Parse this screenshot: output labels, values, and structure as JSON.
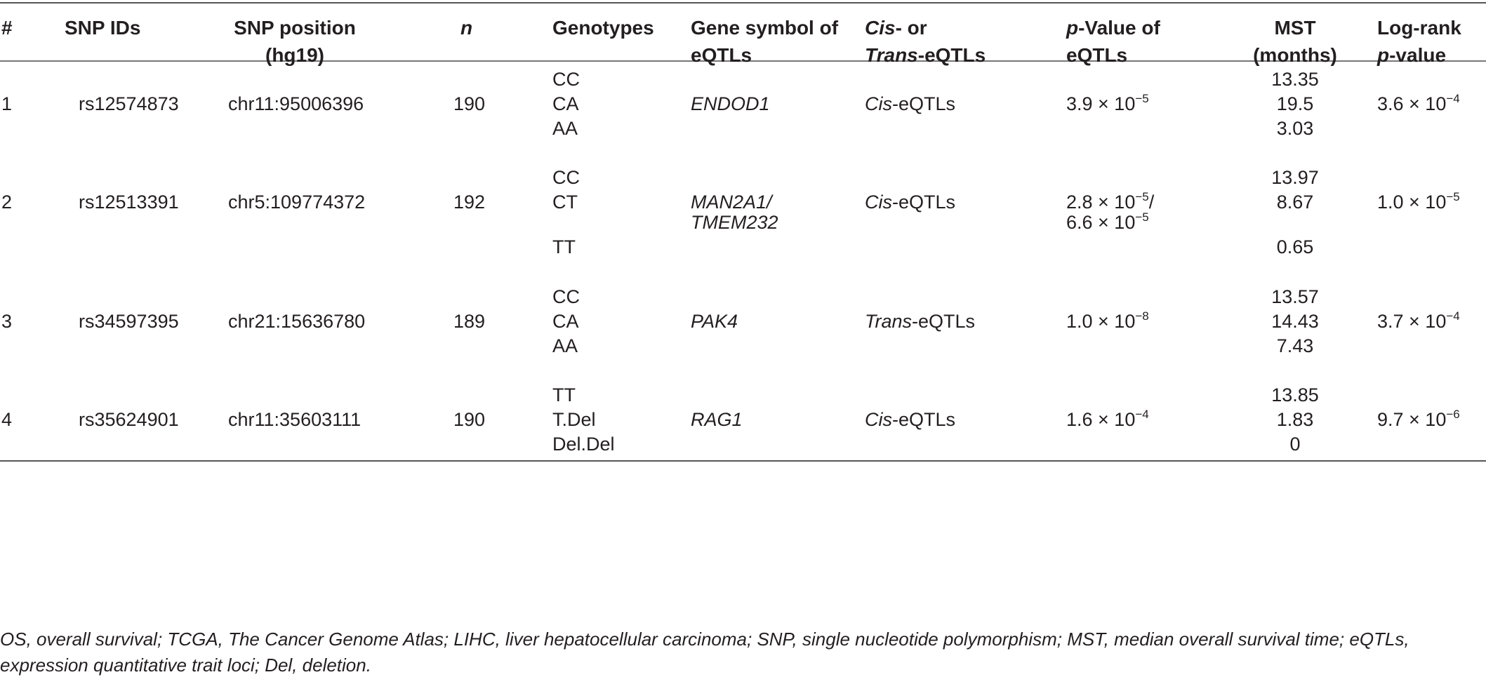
{
  "headers": {
    "num": "#",
    "snp_ids": "SNP IDs",
    "snp_position_l1": "SNP position",
    "snp_position_l2": "(hg19)",
    "n": "n",
    "genotypes": "Genotypes",
    "gene_symbol_l1": "Gene symbol of",
    "gene_symbol_l2": "eQTLs",
    "cis_trans_l1_italic": "Cis",
    "cis_trans_l1_rest": "- or",
    "cis_trans_l2_italic": "Trans",
    "cis_trans_l2_rest": "-eQTLs",
    "pvalue_l1_italic": "p",
    "pvalue_l1_rest": "-Value of",
    "pvalue_l2": "eQTLs",
    "mst_l1": "MST",
    "mst_l2": "(months)",
    "logrank_l1": "Log-rank",
    "logrank_l2_italic": "p",
    "logrank_l2_rest": "-value"
  },
  "rows": [
    {
      "num": "1",
      "snp_id": "rs12574873",
      "position": "chr11:95006396",
      "n": "190",
      "genotypes": [
        "CC",
        "CA",
        "AA"
      ],
      "gene": "ENDOD1",
      "eqtl_prefix": "Cis",
      "eqtl_suffix": "-eQTLs",
      "pval_base": "3.9 × 10",
      "pval_exp": "−5",
      "mst": [
        "13.35",
        "19.5",
        "3.03"
      ],
      "logrank_base": "3.6 × 10",
      "logrank_exp": "−4"
    },
    {
      "num": "2",
      "snp_id": "rs12513391",
      "position": "chr5:109774372",
      "n": "192",
      "genotypes": [
        "CC",
        "CT",
        "TT"
      ],
      "gene_l1": "MAN2A1/",
      "gene_l2": "TMEM232",
      "eqtl_prefix": "Cis",
      "eqtl_suffix": "-eQTLs",
      "pval_base": "2.8 × 10",
      "pval_exp": "−5",
      "pval_sep": "/",
      "pval2_base": "6.6 × 10",
      "pval2_exp": "−5",
      "mst": [
        "13.97",
        "8.67",
        "0.65"
      ],
      "logrank_base": "1.0 × 10",
      "logrank_exp": "−5"
    },
    {
      "num": "3",
      "snp_id": "rs34597395",
      "position": "chr21:15636780",
      "n": "189",
      "genotypes": [
        "CC",
        "CA",
        "AA"
      ],
      "gene": "PAK4",
      "eqtl_prefix": "Trans",
      "eqtl_suffix": "-eQTLs",
      "pval_base": "1.0 × 10",
      "pval_exp": "−8",
      "mst": [
        "13.57",
        "14.43",
        "7.43"
      ],
      "logrank_base": "3.7 × 10",
      "logrank_exp": "−4"
    },
    {
      "num": "4",
      "snp_id": "rs35624901",
      "position": "chr11:35603111",
      "n": "190",
      "genotypes": [
        "TT",
        "T.Del",
        "Del.Del"
      ],
      "gene": "RAG1",
      "eqtl_prefix": "Cis",
      "eqtl_suffix": "-eQTLs",
      "pval_base": "1.6 × 10",
      "pval_exp": "−4",
      "mst": [
        "13.85",
        "1.83",
        "0"
      ],
      "logrank_base": "9.7 × 10",
      "logrank_exp": "−6"
    }
  ],
  "footnote": "OS, overall survival; TCGA, The Cancer Genome Atlas; LIHC, liver hepatocellular carcinoma; SNP, single nucleotide polymorphism; MST, median overall survival time; eQTLs, expression quantitative trait loci; Del, deletion."
}
